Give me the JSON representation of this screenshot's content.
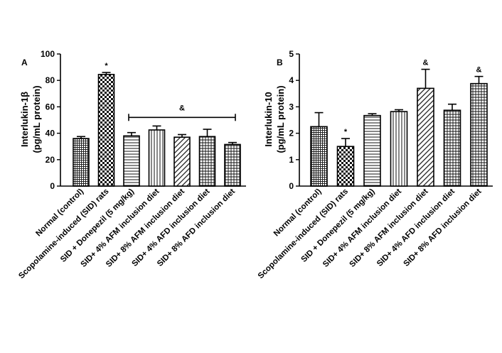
{
  "chart_data": [
    {
      "panel": "A",
      "type": "bar",
      "ylabel_line1": "Interlukin-1β",
      "ylabel_line2": "(pg/mL protein)",
      "ylim": [
        0,
        100
      ],
      "yticks": [
        0,
        20,
        40,
        60,
        80,
        100
      ],
      "categories": [
        "Normal (control)",
        "Scopolamine-induced (SID) rats",
        "SID + Donepezil (5 mg/kg)",
        "SID+ 4% AFM inclusion diet",
        "SID+ 8% AFM inclusion diet",
        "SID+ 4% AFD inclusion diet",
        "SID+ 8% AFD inclusion diet"
      ],
      "values": [
        36,
        84.5,
        38,
        42.5,
        37,
        37.5,
        31.5
      ],
      "errors": [
        1.5,
        1.5,
        2.5,
        3,
        2,
        5.5,
        1.5
      ],
      "patterns": [
        "dense-grid",
        "checker",
        "hlines",
        "vlines",
        "diag",
        "grid",
        "grid"
      ],
      "annotations": [
        {
          "bar": 1,
          "text": "*"
        }
      ],
      "bracket": {
        "from_bar": 2,
        "to_bar": 6,
        "value": 52,
        "text": "&"
      }
    },
    {
      "panel": "B",
      "type": "bar",
      "ylabel_line1": "Interlukin-10",
      "ylabel_line2": "(pg/mL protein)",
      "ylim": [
        0,
        5
      ],
      "yticks": [
        0,
        1,
        2,
        3,
        4,
        5
      ],
      "categories": [
        "Normal (control)",
        "Scopolamine-induced (SID) rats",
        "SID + Donepezil (5 mg/kg)",
        "SID+ 4% AFM inclusion diet",
        "SID+ 8% AFM inclusion diet",
        "SID+ 4% AFD inclusion diet",
        "SID+ 8% AFD inclusion diet"
      ],
      "values": [
        2.25,
        1.5,
        2.67,
        2.82,
        3.7,
        2.87,
        3.88
      ],
      "errors": [
        0.53,
        0.3,
        0.07,
        0.07,
        0.72,
        0.23,
        0.27
      ],
      "patterns": [
        "dense-grid",
        "checker",
        "hlines",
        "vlines",
        "diag",
        "grid",
        "grid"
      ],
      "annotations": [
        {
          "bar": 1,
          "text": "*"
        },
        {
          "bar": 4,
          "text": "&"
        },
        {
          "bar": 6,
          "text": "&"
        }
      ]
    }
  ]
}
